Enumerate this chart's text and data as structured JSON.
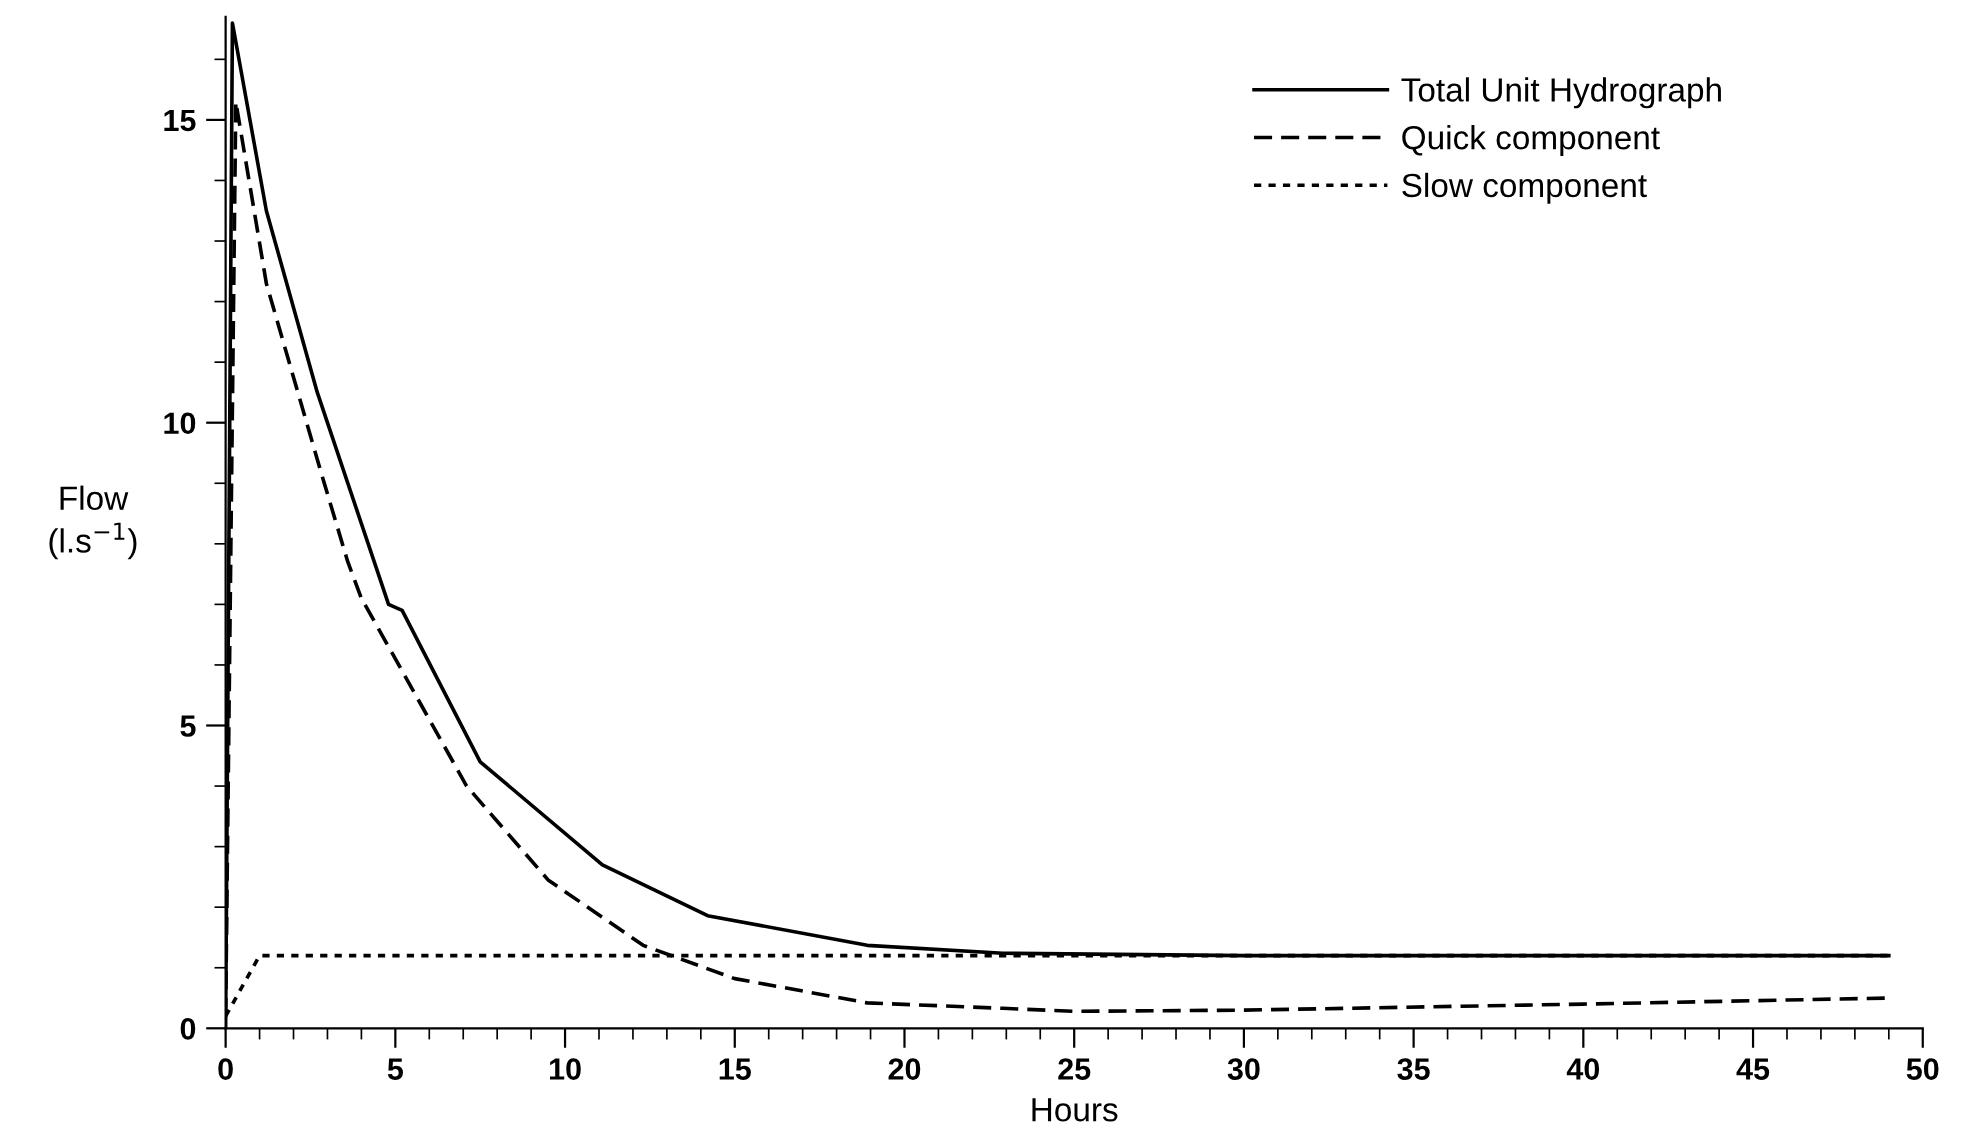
{
  "chart_data": {
    "type": "line",
    "xlabel": "Hours",
    "ylabel": "Flow\n(l.s$^{−1}$)",
    "xlim": [
      0,
      50
    ],
    "ylim": [
      0,
      16.7
    ],
    "xticks": [
      0,
      5,
      10,
      15,
      20,
      25,
      30,
      35,
      40,
      45,
      50
    ],
    "yticks": [
      0,
      5,
      10,
      15
    ],
    "grid": false,
    "legend": "top right",
    "marker": "none",
    "series": [
      {
        "name": "Total Unit Hydrograph",
        "color": "#000000",
        "line_style": "solid",
        "x": [
          0,
          0.2,
          1.2,
          2.7,
          4.8,
          5.2,
          7.5,
          11.1,
          14.2,
          18.9,
          22.9,
          30,
          40,
          49
        ],
        "values": [
          0,
          16.6,
          13.5,
          10.5,
          7.0,
          6.9,
          4.4,
          2.7,
          1.86,
          1.37,
          1.24,
          1.2,
          1.2,
          1.2
        ]
      },
      {
        "name": "Quick component",
        "color": "#000000",
        "line_style": "dashed",
        "x": [
          0,
          0.3,
          1.2,
          2.8,
          3.6,
          4.0,
          5.2,
          7.1,
          9.5,
          12.3,
          15,
          18.9,
          22.9,
          25,
          30,
          40,
          49
        ],
        "values": [
          0.2,
          15.3,
          12.3,
          9.2,
          7.7,
          7.1,
          5.9,
          4.0,
          2.45,
          1.37,
          0.82,
          0.42,
          0.33,
          0.28,
          0.3,
          0.4,
          0.5
        ]
      },
      {
        "name": "Slow component",
        "color": "#000000",
        "line_style": "dotted",
        "x": [
          0,
          1,
          10,
          20,
          30,
          40,
          49
        ],
        "values": [
          0.2,
          1.2,
          1.2,
          1.2,
          1.2,
          1.2,
          1.2
        ]
      }
    ]
  }
}
